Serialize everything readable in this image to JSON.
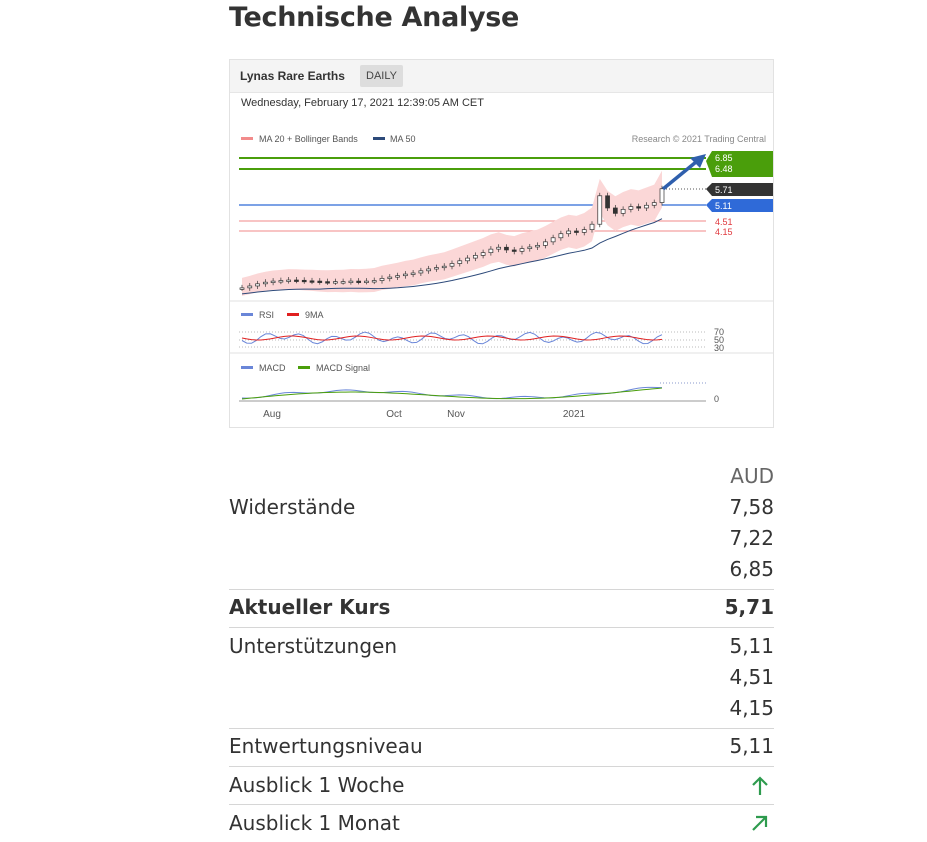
{
  "page_title": "Technische Analyse",
  "chart_header": {
    "instrument": "Lynas Rare Earths",
    "period": "DAILY",
    "timestamp": "Wednesday, February 17, 2021 12:39:05 AM CET",
    "legend_ma20": "MA 20 + Bollinger Bands",
    "legend_ma50": "MA 50",
    "copyright": "Research © 2021 Trading Central",
    "legend_rsi": "RSI",
    "legend_9ma": "9MA",
    "legend_macd": "MACD",
    "legend_macd_signal": "MACD Signal"
  },
  "chart_data": {
    "type": "line",
    "x_tick_labels": [
      "Aug",
      "Oct",
      "Nov",
      "2021"
    ],
    "price_levels": [
      {
        "value": "6.85",
        "role": "resistance",
        "color": "#4a9e0b"
      },
      {
        "value": "6.48",
        "role": "target",
        "color": "#4a9e0b"
      },
      {
        "value": "5.71",
        "role": "current",
        "color": "#333333"
      },
      {
        "value": "5.11",
        "role": "pivot",
        "color": "#2f6ad8"
      },
      {
        "value": "4.51",
        "role": "support",
        "color": "#e0393e"
      },
      {
        "value": "4.15",
        "role": "support",
        "color": "#e0393e"
      }
    ],
    "rsi_levels": [
      "70",
      "50",
      "30"
    ],
    "macd_zero_label": "0",
    "price_series": [
      2.05,
      2.12,
      2.2,
      2.26,
      2.3,
      2.32,
      2.34,
      2.33,
      2.31,
      2.3,
      2.28,
      2.27,
      2.28,
      2.28,
      2.3,
      2.29,
      2.3,
      2.32,
      2.4,
      2.45,
      2.5,
      2.56,
      2.6,
      2.68,
      2.75,
      2.8,
      2.85,
      2.95,
      3.05,
      3.15,
      3.25,
      3.35,
      3.48,
      3.55,
      3.45,
      3.4,
      3.5,
      3.56,
      3.62,
      3.75,
      3.9,
      4.05,
      4.15,
      4.1,
      4.2,
      4.4,
      5.45,
      5.0,
      4.8,
      4.95,
      5.05,
      5.0,
      5.1,
      5.2,
      5.71
    ]
  },
  "table": {
    "unit": "AUD",
    "resistances_label": "Widerstände",
    "resistances": [
      "7,58",
      "7,22",
      "6,85"
    ],
    "current_label": "Aktueller Kurs",
    "current_value": "5,71",
    "supports_label": "Unterstützungen",
    "supports": [
      "5,11",
      "4,51",
      "4,15"
    ],
    "invalidation_label": "Entwertungsniveau",
    "invalidation_value": "5,11",
    "outlook_week_label": "Ausblick 1 Woche",
    "outlook_week_icon": "arrow-up-icon",
    "outlook_month_label": "Ausblick 1 Monat",
    "outlook_month_icon": "arrow-up-right-icon",
    "arrow_color": "#2e9b4e"
  }
}
